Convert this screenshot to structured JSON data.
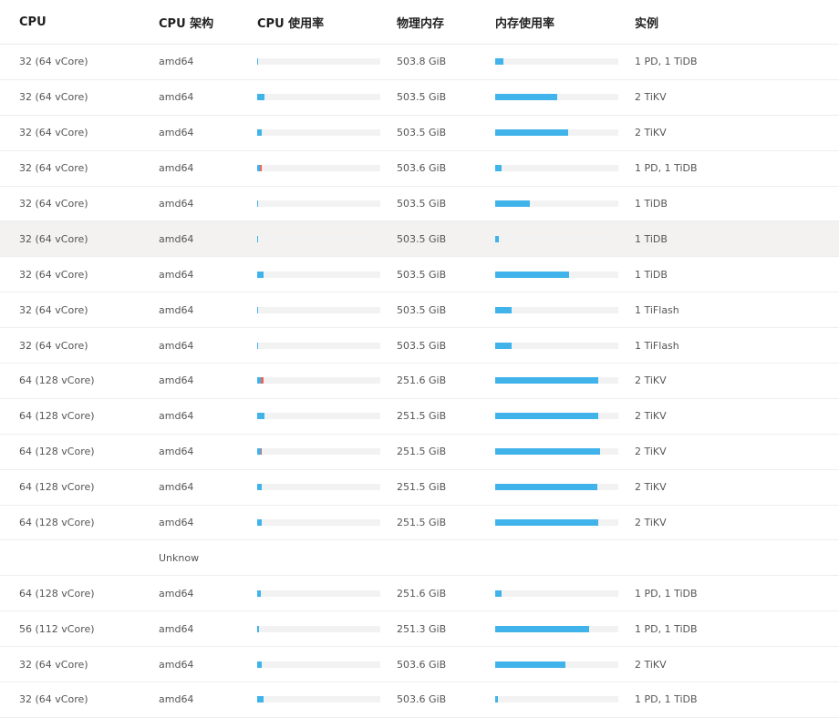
{
  "headers": {
    "cpu": "CPU",
    "arch": "CPU 架构",
    "cpu_usage": "CPU 使用率",
    "memory": "物理内存",
    "mem_usage": "内存使用率",
    "instances": "实例"
  },
  "colors": {
    "usage": "#40b3ea",
    "system": "#f0625d",
    "track": "#f2f2f2"
  },
  "rows": [
    {
      "cpu": "32 (64 vCore)",
      "arch": "amd64",
      "cpu_usage": 0.01,
      "cpu_sys": 0,
      "memory": "503.8 GiB",
      "mem_usage": 0.07,
      "instances": "1 PD, 1 TiDB"
    },
    {
      "cpu": "32 (64 vCore)",
      "arch": "amd64",
      "cpu_usage": 0.06,
      "cpu_sys": 0,
      "memory": "503.5 GiB",
      "mem_usage": 0.5,
      "instances": "2 TiKV"
    },
    {
      "cpu": "32 (64 vCore)",
      "arch": "amd64",
      "cpu_usage": 0.04,
      "cpu_sys": 0,
      "memory": "503.5 GiB",
      "mem_usage": 0.59,
      "instances": "2 TiKV"
    },
    {
      "cpu": "32 (64 vCore)",
      "arch": "amd64",
      "cpu_usage": 0.02,
      "cpu_sys": 0.015,
      "memory": "503.6 GiB",
      "mem_usage": 0.05,
      "instances": "1 PD, 1 TiDB"
    },
    {
      "cpu": "32 (64 vCore)",
      "arch": "amd64",
      "cpu_usage": 0.01,
      "cpu_sys": 0,
      "memory": "503.5 GiB",
      "mem_usage": 0.28,
      "instances": "1 TiDB"
    },
    {
      "cpu": "32 (64 vCore)",
      "arch": "amd64",
      "cpu_usage": 0.01,
      "cpu_sys": 0,
      "memory": "503.5 GiB",
      "mem_usage": 0.03,
      "instances": "1 TiDB",
      "highlight": true
    },
    {
      "cpu": "32 (64 vCore)",
      "arch": "amd64",
      "cpu_usage": 0.05,
      "cpu_sys": 0,
      "memory": "503.5 GiB",
      "mem_usage": 0.6,
      "instances": "1 TiDB"
    },
    {
      "cpu": "32 (64 vCore)",
      "arch": "amd64",
      "cpu_usage": 0.005,
      "cpu_sys": 0,
      "memory": "503.5 GiB",
      "mem_usage": 0.13,
      "instances": "1 TiFlash"
    },
    {
      "cpu": "32 (64 vCore)",
      "arch": "amd64",
      "cpu_usage": 0.005,
      "cpu_sys": 0,
      "memory": "503.5 GiB",
      "mem_usage": 0.13,
      "instances": "1 TiFlash"
    },
    {
      "cpu": "64 (128 vCore)",
      "arch": "amd64",
      "cpu_usage": 0.03,
      "cpu_sys": 0.02,
      "memory": "251.6 GiB",
      "mem_usage": 0.84,
      "instances": "2 TiKV"
    },
    {
      "cpu": "64 (128 vCore)",
      "arch": "amd64",
      "cpu_usage": 0.06,
      "cpu_sys": 0,
      "memory": "251.5 GiB",
      "mem_usage": 0.84,
      "instances": "2 TiKV"
    },
    {
      "cpu": "64 (128 vCore)",
      "arch": "amd64",
      "cpu_usage": 0.03,
      "cpu_sys": 0.01,
      "memory": "251.5 GiB",
      "mem_usage": 0.85,
      "instances": "2 TiKV"
    },
    {
      "cpu": "64 (128 vCore)",
      "arch": "amd64",
      "cpu_usage": 0.04,
      "cpu_sys": 0,
      "memory": "251.5 GiB",
      "mem_usage": 0.83,
      "instances": "2 TiKV"
    },
    {
      "cpu": "64 (128 vCore)",
      "arch": "amd64",
      "cpu_usage": 0.04,
      "cpu_sys": 0,
      "memory": "251.5 GiB",
      "mem_usage": 0.84,
      "instances": "2 TiKV"
    },
    {
      "cpu": "",
      "arch": "Unknow",
      "cpu_usage": null,
      "cpu_sys": null,
      "memory": "",
      "mem_usage": null,
      "instances": ""
    },
    {
      "cpu": "64 (128 vCore)",
      "arch": "amd64",
      "cpu_usage": 0.03,
      "cpu_sys": 0,
      "memory": "251.6 GiB",
      "mem_usage": 0.05,
      "instances": "1 PD, 1 TiDB"
    },
    {
      "cpu": "56 (112 vCore)",
      "arch": "amd64",
      "cpu_usage": 0.015,
      "cpu_sys": 0,
      "memory": "251.3 GiB",
      "mem_usage": 0.76,
      "instances": "1 PD, 1 TiDB"
    },
    {
      "cpu": "32 (64 vCore)",
      "arch": "amd64",
      "cpu_usage": 0.04,
      "cpu_sys": 0,
      "memory": "503.6 GiB",
      "mem_usage": 0.57,
      "instances": "2 TiKV"
    },
    {
      "cpu": "32 (64 vCore)",
      "arch": "amd64",
      "cpu_usage": 0.05,
      "cpu_sys": 0,
      "memory": "503.6 GiB",
      "mem_usage": 0.02,
      "instances": "1 PD, 1 TiDB"
    }
  ]
}
